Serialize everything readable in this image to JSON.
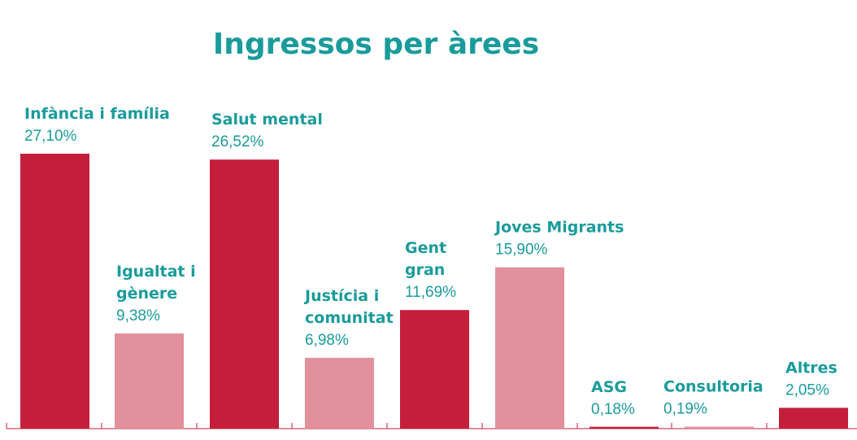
{
  "chart_data": {
    "type": "bar",
    "title": "Ingressos per àrees",
    "xlabel": "",
    "ylabel": "",
    "ylim": [
      0,
      27.1
    ],
    "grid": false,
    "categories": [
      [
        "Infància i família"
      ],
      [
        "Igualtat i",
        "gènere"
      ],
      [
        "Salut mental"
      ],
      [
        "Justícia i",
        "comunitat"
      ],
      [
        "Gent",
        "gran"
      ],
      [
        "Joves Migrants"
      ],
      [
        "ASG"
      ],
      [
        "Consultoria"
      ],
      [
        "Altres"
      ]
    ],
    "values": [
      27.1,
      9.38,
      26.52,
      6.98,
      11.69,
      15.9,
      0.18,
      0.19,
      2.05
    ],
    "value_labels": [
      "27,10%",
      "9,38%",
      "26,52%",
      "6,98%",
      "11,69%",
      "15,90%",
      "0,18%",
      "0,19%",
      "2,05%"
    ],
    "bar_colors": [
      "#c41e3a",
      "#e2909c",
      "#c41e3a",
      "#e2909c",
      "#c41e3a",
      "#e2909c",
      "#c41e3a",
      "#e2909c",
      "#c41e3a"
    ]
  },
  "colors": {
    "title": "#1a9b9b",
    "labels": "#1a9b9b",
    "axis": "#c41e3a"
  }
}
